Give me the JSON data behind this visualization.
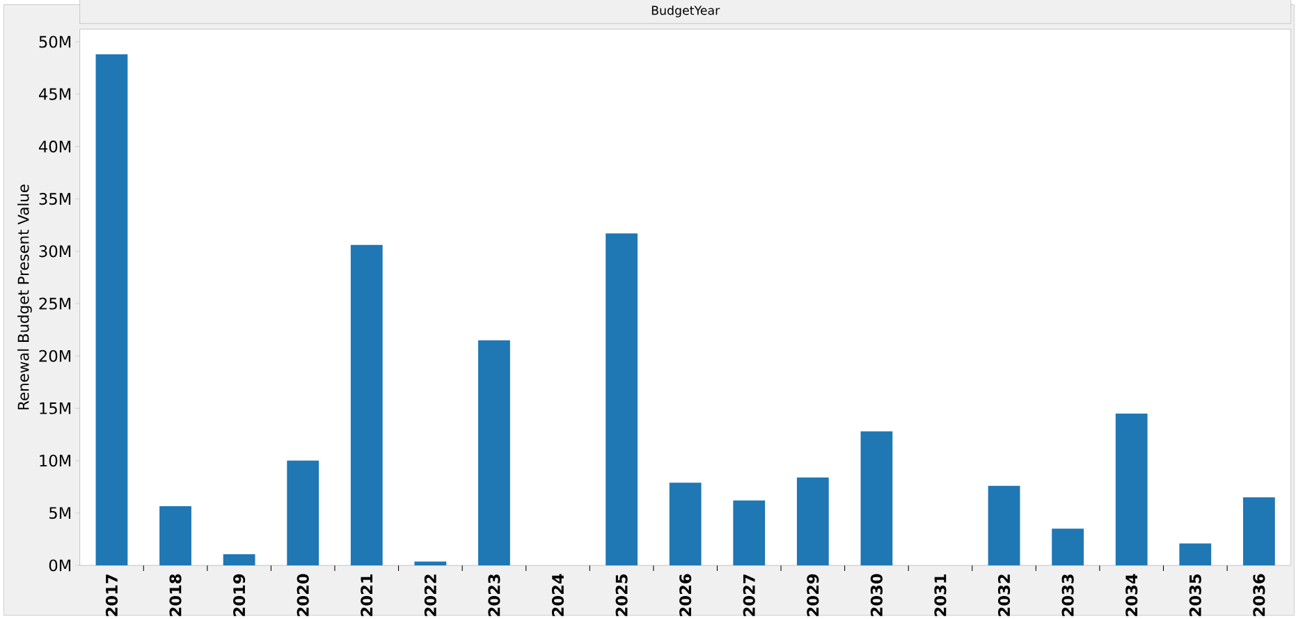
{
  "chart_data": {
    "type": "bar",
    "title": "BudgetYear",
    "ylabel": "Renewal Budget Present Value",
    "categories": [
      "2017",
      "2018",
      "2019",
      "2020",
      "2021",
      "2022",
      "2023",
      "2024",
      "2025",
      "2026",
      "2027",
      "2029",
      "2030",
      "2031",
      "2032",
      "2033",
      "2034",
      "2035",
      "2036"
    ],
    "values": [
      48.8,
      5.65,
      1.06,
      10.0,
      30.6,
      0.37,
      21.5,
      0,
      31.7,
      7.9,
      6.2,
      8.4,
      12.8,
      0,
      7.6,
      3.5,
      14.5,
      2.1,
      6.5
    ],
    "color": "#1f77b4",
    "ylim": [
      0,
      51.2
    ],
    "yticks": [
      {
        "value": 0,
        "label": "0M"
      },
      {
        "value": 5,
        "label": "5M"
      },
      {
        "value": 10,
        "label": "10M"
      },
      {
        "value": 15,
        "label": "15M"
      },
      {
        "value": 20,
        "label": "20M"
      },
      {
        "value": 25,
        "label": "25M"
      },
      {
        "value": 30,
        "label": "30M"
      },
      {
        "value": 35,
        "label": "35M"
      },
      {
        "value": 40,
        "label": "40M"
      },
      {
        "value": 45,
        "label": "45M"
      },
      {
        "value": 50,
        "label": "50M"
      }
    ]
  }
}
